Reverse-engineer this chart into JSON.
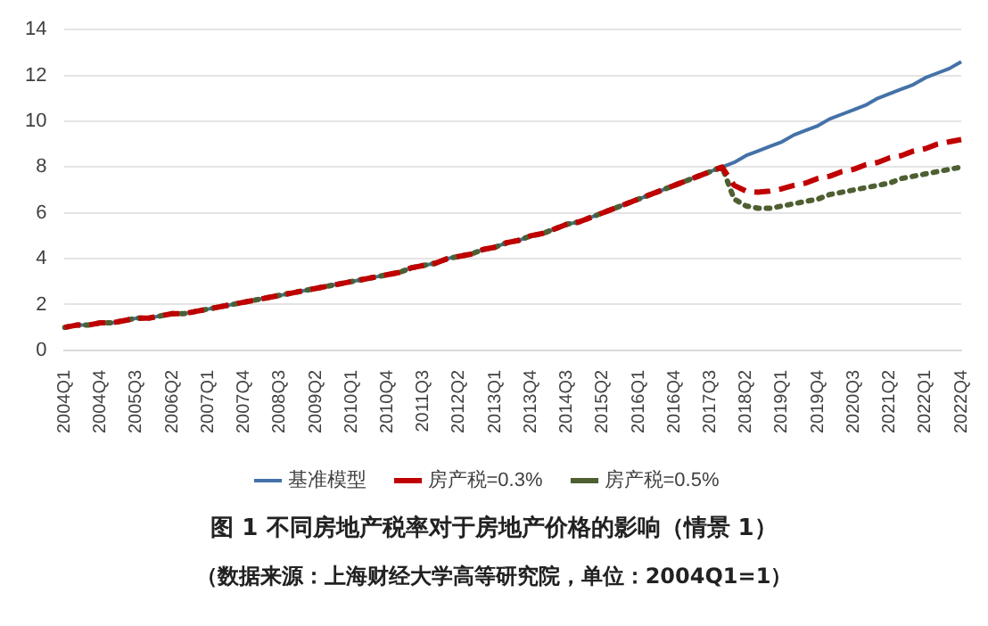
{
  "chart_data": {
    "type": "line",
    "title": "图 1 不同房地产税率对于房地产价格的影响（情景 1）",
    "annotations": [
      "（数据来源：上海财经大学高等研究院，单位：2004Q1=1）"
    ],
    "categories": [
      "2004Q1",
      null,
      null,
      "2004Q4",
      null,
      null,
      "2005Q3",
      null,
      null,
      "2006Q2",
      null,
      null,
      "2007Q1",
      null,
      null,
      "2007Q4",
      null,
      null,
      "2008Q3",
      null,
      null,
      "2009Q2",
      null,
      null,
      "2010Q1",
      null,
      null,
      "2010Q4",
      null,
      null,
      "2011Q3",
      null,
      null,
      "2012Q2",
      null,
      null,
      "2013Q1",
      null,
      null,
      "2013Q4",
      null,
      null,
      "2014Q3",
      null,
      null,
      "2015Q2",
      null,
      null,
      "2016Q1",
      null,
      null,
      "2016Q4",
      null,
      null,
      "2017Q3",
      null,
      null,
      "2018Q2",
      null,
      null,
      "2019Q1",
      null,
      null,
      "2019Q4",
      null,
      null,
      "2020Q3",
      null,
      null,
      "2021Q2",
      null,
      null,
      "2022Q1",
      null,
      null,
      "2022Q4"
    ],
    "series": [
      {
        "name": "基准模型",
        "color": "#4472a8",
        "line_style": "solid",
        "values": [
          1.0,
          1.1,
          1.1,
          1.2,
          1.2,
          1.3,
          1.4,
          1.4,
          1.5,
          1.6,
          1.6,
          1.7,
          1.8,
          1.9,
          2.0,
          2.1,
          2.2,
          2.3,
          2.4,
          2.5,
          2.6,
          2.7,
          2.8,
          2.9,
          3.0,
          3.1,
          3.2,
          3.3,
          3.4,
          3.6,
          3.7,
          3.8,
          4.0,
          4.1,
          4.2,
          4.4,
          4.5,
          4.7,
          4.8,
          5.0,
          5.1,
          5.3,
          5.5,
          5.6,
          5.8,
          6.0,
          6.2,
          6.4,
          6.6,
          6.8,
          7.0,
          7.2,
          7.4,
          7.6,
          7.8,
          8.0,
          8.2,
          8.5,
          8.7,
          8.9,
          9.1,
          9.4,
          9.6,
          9.8,
          10.1,
          10.3,
          10.5,
          10.7,
          11.0,
          11.2,
          11.4,
          11.6,
          11.9,
          12.1,
          12.3,
          12.6
        ]
      },
      {
        "name": "房产税=0.5%",
        "color": "#4e5f32",
        "line_style": "dotted",
        "values": [
          1.0,
          1.1,
          1.1,
          1.2,
          1.2,
          1.3,
          1.4,
          1.4,
          1.5,
          1.6,
          1.6,
          1.7,
          1.8,
          1.9,
          2.0,
          2.1,
          2.2,
          2.3,
          2.4,
          2.5,
          2.6,
          2.7,
          2.8,
          2.9,
          3.0,
          3.1,
          3.2,
          3.3,
          3.4,
          3.6,
          3.7,
          3.8,
          4.0,
          4.1,
          4.2,
          4.4,
          4.5,
          4.7,
          4.8,
          5.0,
          5.1,
          5.3,
          5.5,
          5.6,
          5.8,
          6.0,
          6.2,
          6.4,
          6.6,
          6.8,
          7.0,
          7.2,
          7.4,
          7.6,
          7.8,
          8.0,
          6.6,
          6.3,
          6.2,
          6.2,
          6.3,
          6.4,
          6.5,
          6.6,
          6.8,
          6.9,
          7.0,
          7.1,
          7.2,
          7.3,
          7.5,
          7.6,
          7.7,
          7.8,
          7.9,
          8.0
        ]
      },
      {
        "name": "房产税=0.3%",
        "color": "#c00000",
        "line_style": "dashed",
        "values": [
          1.0,
          1.1,
          1.1,
          1.2,
          1.2,
          1.3,
          1.4,
          1.4,
          1.5,
          1.6,
          1.6,
          1.7,
          1.8,
          1.9,
          2.0,
          2.1,
          2.2,
          2.3,
          2.4,
          2.5,
          2.6,
          2.7,
          2.8,
          2.9,
          3.0,
          3.1,
          3.2,
          3.3,
          3.4,
          3.6,
          3.7,
          3.8,
          4.0,
          4.1,
          4.2,
          4.4,
          4.5,
          4.7,
          4.8,
          5.0,
          5.1,
          5.3,
          5.5,
          5.6,
          5.8,
          6.0,
          6.2,
          6.4,
          6.6,
          6.8,
          7.0,
          7.2,
          7.4,
          7.6,
          7.8,
          8.0,
          7.2,
          6.95,
          6.9,
          6.95,
          7.05,
          7.2,
          7.3,
          7.5,
          7.6,
          7.8,
          7.9,
          8.1,
          8.2,
          8.4,
          8.5,
          8.7,
          8.8,
          9.0,
          9.1,
          9.2
        ]
      }
    ],
    "ylim": [
      0,
      14
    ],
    "yticks": [
      0,
      2,
      4,
      6,
      8,
      10,
      12,
      14
    ],
    "grid": "y",
    "legend": "bottom",
    "marker": "none"
  }
}
